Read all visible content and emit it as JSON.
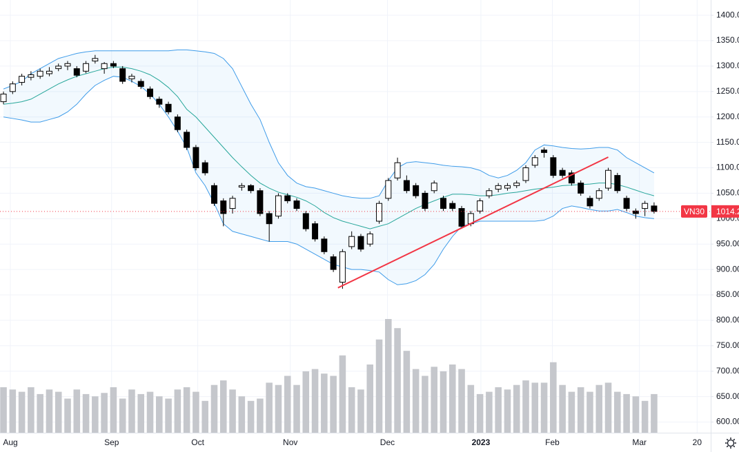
{
  "chart_data": {
    "type": "candlestick",
    "symbol": "VN30",
    "last_price": 1014.2,
    "ylim": [
      579,
      1430
    ],
    "yticks": [
      {
        "value": 600,
        "label": "600.00"
      },
      {
        "value": 650,
        "label": "650.00"
      },
      {
        "value": 700,
        "label": "700.00"
      },
      {
        "value": 750,
        "label": "750.00"
      },
      {
        "value": 800,
        "label": "800.00"
      },
      {
        "value": 850,
        "label": "850.00"
      },
      {
        "value": 900,
        "label": "900.00"
      },
      {
        "value": 950,
        "label": "950.00"
      },
      {
        "value": 1000,
        "label": "1000.00"
      },
      {
        "value": 1050,
        "label": "1050.00"
      },
      {
        "value": 1100,
        "label": "1100.00"
      },
      {
        "value": 1150,
        "label": "1150.00"
      },
      {
        "value": 1200,
        "label": "1200.00"
      },
      {
        "value": 1250,
        "label": "1250.00"
      },
      {
        "value": 1300,
        "label": "1300.00"
      },
      {
        "value": 1350,
        "label": "1350.00"
      },
      {
        "value": 1400,
        "label": "1400.00"
      }
    ],
    "xlim": [
      -0.38,
      77.18
    ],
    "xticks": [
      {
        "value": 0.75,
        "label": "Aug"
      },
      {
        "value": 11.8,
        "label": "Sep"
      },
      {
        "value": 21.2,
        "label": "Oct"
      },
      {
        "value": 31.3,
        "label": "Nov"
      },
      {
        "value": 41.9,
        "label": "Dec"
      },
      {
        "value": 52.1,
        "label": "2023"
      },
      {
        "value": 59.9,
        "label": "Feb"
      },
      {
        "value": 69.4,
        "label": "Mar"
      },
      {
        "value": 75.7,
        "label": "20"
      }
    ],
    "grid": true,
    "up_color": "#ffffff",
    "down_color": "#000000",
    "ohlc": [
      [
        1230,
        1250,
        1225,
        1245
      ],
      [
        1250,
        1270,
        1245,
        1265
      ],
      [
        1268,
        1285,
        1262,
        1280
      ],
      [
        1278,
        1290,
        1272,
        1283
      ],
      [
        1280,
        1295,
        1275,
        1290
      ],
      [
        1285,
        1298,
        1280,
        1290
      ],
      [
        1295,
        1305,
        1290,
        1300
      ],
      [
        1300,
        1310,
        1292,
        1305
      ],
      [
        1295,
        1300,
        1278,
        1282
      ],
      [
        1290,
        1310,
        1286,
        1305
      ],
      [
        1310,
        1322,
        1305,
        1315
      ],
      [
        1295,
        1308,
        1285,
        1305
      ],
      [
        1305,
        1310,
        1296,
        1300
      ],
      [
        1295,
        1300,
        1265,
        1270
      ],
      [
        1275,
        1285,
        1268,
        1280
      ],
      [
        1270,
        1275,
        1255,
        1260
      ],
      [
        1255,
        1260,
        1235,
        1240
      ],
      [
        1235,
        1240,
        1218,
        1225
      ],
      [
        1225,
        1230,
        1205,
        1210
      ],
      [
        1200,
        1205,
        1170,
        1175
      ],
      [
        1170,
        1175,
        1135,
        1140
      ],
      [
        1140,
        1145,
        1095,
        1100
      ],
      [
        1110,
        1115,
        1085,
        1090
      ],
      [
        1065,
        1070,
        1025,
        1030
      ],
      [
        1035,
        1040,
        985,
        1010
      ],
      [
        1020,
        1045,
        1010,
        1040
      ],
      [
        1062,
        1070,
        1055,
        1065
      ],
      [
        1065,
        1068,
        1050,
        1055
      ],
      [
        1055,
        1060,
        1005,
        1010
      ],
      [
        1010,
        1015,
        955,
        990
      ],
      [
        1005,
        1050,
        1000,
        1045
      ],
      [
        1045,
        1050,
        1030,
        1035
      ],
      [
        1035,
        1040,
        1015,
        1020
      ],
      [
        1010,
        1015,
        975,
        980
      ],
      [
        990,
        995,
        955,
        960
      ],
      [
        960,
        965,
        930,
        935
      ],
      [
        925,
        930,
        895,
        900
      ],
      [
        875,
        940,
        862,
        935
      ],
      [
        945,
        975,
        940,
        965
      ],
      [
        965,
        970,
        935,
        940
      ],
      [
        950,
        975,
        945,
        970
      ],
      [
        995,
        1035,
        990,
        1030
      ],
      [
        1040,
        1080,
        1035,
        1075
      ],
      [
        1080,
        1120,
        1075,
        1110
      ],
      [
        1075,
        1085,
        1050,
        1055
      ],
      [
        1065,
        1070,
        1040,
        1045
      ],
      [
        1050,
        1055,
        1015,
        1020
      ],
      [
        1055,
        1075,
        1050,
        1070
      ],
      [
        1040,
        1045,
        1015,
        1020
      ],
      [
        1030,
        1035,
        1015,
        1020
      ],
      [
        1020,
        1025,
        980,
        985
      ],
      [
        990,
        1015,
        985,
        1010
      ],
      [
        1015,
        1040,
        1010,
        1035
      ],
      [
        1045,
        1060,
        1040,
        1055
      ],
      [
        1058,
        1070,
        1052,
        1065
      ],
      [
        1060,
        1070,
        1055,
        1065
      ],
      [
        1065,
        1075,
        1060,
        1070
      ],
      [
        1075,
        1105,
        1070,
        1100
      ],
      [
        1105,
        1125,
        1100,
        1120
      ],
      [
        1135,
        1140,
        1120,
        1130
      ],
      [
        1120,
        1125,
        1080,
        1085
      ],
      [
        1095,
        1100,
        1080,
        1085
      ],
      [
        1090,
        1095,
        1065,
        1070
      ],
      [
        1070,
        1075,
        1045,
        1050
      ],
      [
        1040,
        1045,
        1020,
        1025
      ],
      [
        1040,
        1060,
        1035,
        1055
      ],
      [
        1060,
        1100,
        1055,
        1095
      ],
      [
        1085,
        1090,
        1050,
        1055
      ],
      [
        1040,
        1045,
        1015,
        1020
      ],
      [
        1015,
        1020,
        1000,
        1010
      ],
      [
        1020,
        1035,
        1005,
        1030
      ],
      [
        1025,
        1032,
        1010,
        1014.2
      ]
    ],
    "volume_lim": [
      0,
      100
    ],
    "volume_color": "#c5c7cc",
    "volume": [
      40,
      38,
      36,
      40,
      34,
      38,
      36,
      30,
      38,
      34,
      32,
      35,
      40,
      30,
      38,
      34,
      36,
      32,
      30,
      38,
      40,
      36,
      28,
      42,
      46,
      38,
      32,
      28,
      30,
      44,
      42,
      50,
      42,
      54,
      56,
      52,
      50,
      68,
      40,
      38,
      60,
      82,
      100,
      92,
      72,
      56,
      50,
      58,
      54,
      60,
      56,
      42,
      34,
      36,
      40,
      38,
      42,
      46,
      44,
      44,
      62,
      42,
      36,
      40,
      36,
      42,
      44,
      36,
      34,
      32,
      28,
      34
    ],
    "bands": {
      "band_color": "#3d9be9",
      "middle_color": "#26a69a",
      "fill": "rgba(33,150,243,0.06)",
      "upper": [
        1255,
        1262,
        1270,
        1285,
        1295,
        1305,
        1315,
        1320,
        1325,
        1328,
        1330,
        1330,
        1330,
        1330,
        1330,
        1330,
        1330,
        1330,
        1330,
        1332,
        1332,
        1330,
        1328,
        1325,
        1315,
        1295,
        1260,
        1225,
        1195,
        1150,
        1110,
        1085,
        1070,
        1063,
        1060,
        1055,
        1050,
        1045,
        1042,
        1040,
        1040,
        1045,
        1075,
        1100,
        1110,
        1112,
        1110,
        1108,
        1105,
        1103,
        1102,
        1100,
        1095,
        1085,
        1080,
        1085,
        1095,
        1110,
        1135,
        1145,
        1143,
        1140,
        1138,
        1137,
        1138,
        1140,
        1140,
        1135,
        1120,
        1110,
        1100,
        1090
      ],
      "middle": [
        1225,
        1227,
        1230,
        1235,
        1245,
        1255,
        1265,
        1273,
        1280,
        1285,
        1290,
        1295,
        1298,
        1298,
        1295,
        1290,
        1283,
        1272,
        1258,
        1240,
        1215,
        1200,
        1180,
        1160,
        1140,
        1120,
        1102,
        1085,
        1070,
        1060,
        1052,
        1047,
        1042,
        1035,
        1025,
        1012,
        1002,
        995,
        990,
        985,
        980,
        985,
        990,
        1000,
        1010,
        1020,
        1028,
        1035,
        1042,
        1048,
        1048,
        1047,
        1045,
        1045,
        1047,
        1050,
        1052,
        1055,
        1058,
        1060,
        1062,
        1065,
        1066,
        1067,
        1068,
        1070,
        1070,
        1067,
        1062,
        1056,
        1050,
        1045
      ],
      "lower": [
        1200,
        1197,
        1194,
        1190,
        1190,
        1195,
        1200,
        1210,
        1225,
        1245,
        1262,
        1272,
        1280,
        1278,
        1270,
        1260,
        1245,
        1225,
        1200,
        1172,
        1140,
        1090,
        1065,
        1030,
        990,
        975,
        970,
        965,
        960,
        955,
        955,
        955,
        950,
        940,
        930,
        920,
        910,
        905,
        900,
        900,
        898,
        895,
        880,
        870,
        872,
        878,
        890,
        910,
        940,
        965,
        985,
        990,
        995,
        995,
        995,
        995,
        995,
        995,
        995,
        997,
        1005,
        1020,
        1025,
        1022,
        1018,
        1015,
        1015,
        1018,
        1012,
        1005,
        1002,
        1000
      ]
    },
    "trendline": {
      "color": "#f23645",
      "x": [
        36.5,
        66
      ],
      "y": [
        864,
        1121
      ]
    }
  }
}
